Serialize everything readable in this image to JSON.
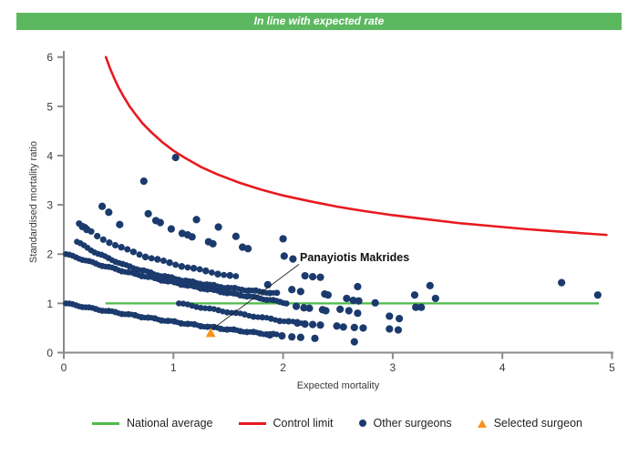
{
  "header": {
    "title": "In line with expected rate",
    "bg_color": "#5cb85f"
  },
  "legend": [
    {
      "label": "National average",
      "marker": "line",
      "color": "#4fbb4a"
    },
    {
      "label": "Control limit",
      "marker": "line",
      "color": "#e8191f"
    },
    {
      "label": "Other surgeons",
      "marker": "dot",
      "color": "#1b3a6d"
    },
    {
      "label": "Selected surgeon",
      "marker": "triangle",
      "color": "#f79420"
    }
  ],
  "chart_data": {
    "type": "scatter",
    "title": "",
    "xlabel": "Expected mortality",
    "ylabel": "Standardised mortality ratio",
    "xlim": [
      0,
      5
    ],
    "ylim": [
      0,
      6
    ],
    "xticks": [
      0,
      1,
      2,
      3,
      4,
      5
    ],
    "yticks": [
      0,
      1,
      2,
      3,
      4,
      5,
      6
    ],
    "grid": false,
    "legend_position": "bottom",
    "colors": {
      "dots": "#1b3a6d",
      "control_limit": "#e8191f",
      "national_average": "#4fbb4a",
      "selected": "#f79420",
      "axis": "#8a8a8a",
      "tick_text": "#3a3a3a"
    },
    "national_average": {
      "y": 1.0,
      "x_start": 0.38,
      "x_end": 4.88
    },
    "control_limit": {
      "formula": "y = 1 + 3.1/sqrt(x)",
      "points": [
        [
          0.384,
          6.0
        ],
        [
          0.42,
          5.78
        ],
        [
          0.46,
          5.57
        ],
        [
          0.5,
          5.38
        ],
        [
          0.55,
          5.18
        ],
        [
          0.6,
          5.0
        ],
        [
          0.66,
          4.82
        ],
        [
          0.72,
          4.65
        ],
        [
          0.8,
          4.47
        ],
        [
          0.9,
          4.27
        ],
        [
          1.0,
          4.1
        ],
        [
          1.1,
          3.96
        ],
        [
          1.25,
          3.77
        ],
        [
          1.4,
          3.62
        ],
        [
          1.6,
          3.45
        ],
        [
          1.8,
          3.31
        ],
        [
          2.0,
          3.19
        ],
        [
          2.25,
          3.07
        ],
        [
          2.5,
          2.96
        ],
        [
          2.75,
          2.87
        ],
        [
          3.0,
          2.79
        ],
        [
          3.3,
          2.71
        ],
        [
          3.6,
          2.63
        ],
        [
          3.9,
          2.57
        ],
        [
          4.2,
          2.51
        ],
        [
          4.5,
          2.46
        ],
        [
          4.75,
          2.42
        ],
        [
          4.95,
          2.39
        ]
      ]
    },
    "selected_surgeon": {
      "name": "Panayiotis Makrides",
      "x": 1.34,
      "y": 0.4
    },
    "other_surgeons": {
      "strands": [
        {
          "step": 0.055,
          "r": 3.6,
          "pts": [
            [
              0.14,
              2.62
            ],
            [
              0.3,
              2.37
            ],
            [
              0.5,
              2.15
            ],
            [
              0.75,
              1.95
            ],
            [
              1.0,
              1.8
            ],
            [
              1.3,
              1.65
            ],
            [
              1.62,
              1.52
            ]
          ]
        },
        {
          "step": 0.032,
          "r": 3.3,
          "pts": [
            [
              0.12,
              2.25
            ],
            [
              0.3,
              2.02
            ],
            [
              0.55,
              1.78
            ],
            [
              0.85,
              1.58
            ],
            [
              1.15,
              1.44
            ],
            [
              1.45,
              1.33
            ],
            [
              1.78,
              1.24
            ],
            [
              1.95,
              1.2
            ]
          ]
        },
        {
          "step": 0.03,
          "r": 3.3,
          "pts": [
            [
              0.02,
              2.0
            ],
            [
              0.3,
              1.8
            ],
            [
              0.6,
              1.62
            ],
            [
              0.9,
              1.47
            ],
            [
              1.2,
              1.33
            ],
            [
              1.5,
              1.21
            ],
            [
              1.8,
              1.1
            ],
            [
              2.05,
              1.0
            ]
          ]
        },
        {
          "step": 0.03,
          "r": 3.3,
          "pts": [
            [
              0.02,
              1.0
            ],
            [
              0.3,
              0.88
            ],
            [
              0.6,
              0.77
            ],
            [
              0.9,
              0.66
            ],
            [
              1.2,
              0.56
            ],
            [
              1.5,
              0.47
            ],
            [
              1.8,
              0.39
            ],
            [
              1.95,
              0.36
            ]
          ]
        },
        {
          "step": 0.04,
          "r": 3.3,
          "pts": [
            [
              1.05,
              1.0
            ],
            [
              1.35,
              0.88
            ],
            [
              1.65,
              0.77
            ],
            [
              1.95,
              0.66
            ],
            [
              2.2,
              0.59
            ]
          ]
        }
      ],
      "points": [
        [
          0.17,
          2.56
        ],
        [
          0.21,
          2.5
        ],
        [
          0.35,
          2.97
        ],
        [
          0.41,
          2.85
        ],
        [
          0.51,
          2.6
        ],
        [
          0.73,
          3.48
        ],
        [
          1.02,
          3.96
        ],
        [
          0.77,
          2.82
        ],
        [
          0.84,
          2.68
        ],
        [
          0.88,
          2.64
        ],
        [
          0.98,
          2.51
        ],
        [
          1.08,
          2.42
        ],
        [
          1.13,
          2.39
        ],
        [
          1.17,
          2.35
        ],
        [
          1.21,
          2.7
        ],
        [
          1.32,
          2.25
        ],
        [
          1.36,
          2.21
        ],
        [
          1.41,
          2.55
        ],
        [
          1.57,
          2.36
        ],
        [
          1.63,
          2.14
        ],
        [
          1.68,
          2.11
        ],
        [
          2.0,
          2.31
        ],
        [
          1.86,
          1.38
        ],
        [
          2.01,
          1.96
        ],
        [
          2.09,
          1.9
        ],
        [
          2.2,
          1.56
        ],
        [
          2.27,
          1.54
        ],
        [
          2.34,
          1.53
        ],
        [
          2.08,
          1.28
        ],
        [
          2.16,
          1.24
        ],
        [
          2.38,
          1.19
        ],
        [
          2.41,
          1.17
        ],
        [
          2.58,
          1.1
        ],
        [
          2.68,
          1.34
        ],
        [
          2.64,
          1.06
        ],
        [
          2.69,
          1.05
        ],
        [
          2.84,
          1.01
        ],
        [
          2.6,
          0.85
        ],
        [
          2.68,
          0.8
        ],
        [
          2.12,
          0.94
        ],
        [
          2.19,
          0.91
        ],
        [
          2.24,
          0.9
        ],
        [
          2.36,
          0.87
        ],
        [
          2.39,
          0.85
        ],
        [
          2.52,
          0.88
        ],
        [
          2.97,
          0.74
        ],
        [
          3.06,
          0.69
        ],
        [
          3.2,
          1.17
        ],
        [
          3.21,
          0.92
        ],
        [
          3.26,
          0.92
        ],
        [
          3.34,
          1.36
        ],
        [
          3.39,
          1.1
        ],
        [
          4.54,
          1.42
        ],
        [
          4.87,
          1.17
        ],
        [
          2.13,
          0.6
        ],
        [
          2.2,
          0.58
        ],
        [
          2.27,
          0.57
        ],
        [
          2.34,
          0.56
        ],
        [
          2.49,
          0.54
        ],
        [
          2.55,
          0.52
        ],
        [
          2.65,
          0.51
        ],
        [
          2.73,
          0.5
        ],
        [
          2.97,
          0.48
        ],
        [
          3.05,
          0.46
        ],
        [
          2.65,
          0.22
        ],
        [
          1.88,
          0.36
        ],
        [
          1.99,
          0.34
        ],
        [
          2.08,
          0.32
        ],
        [
          2.16,
          0.31
        ],
        [
          2.29,
          0.29
        ]
      ]
    }
  }
}
